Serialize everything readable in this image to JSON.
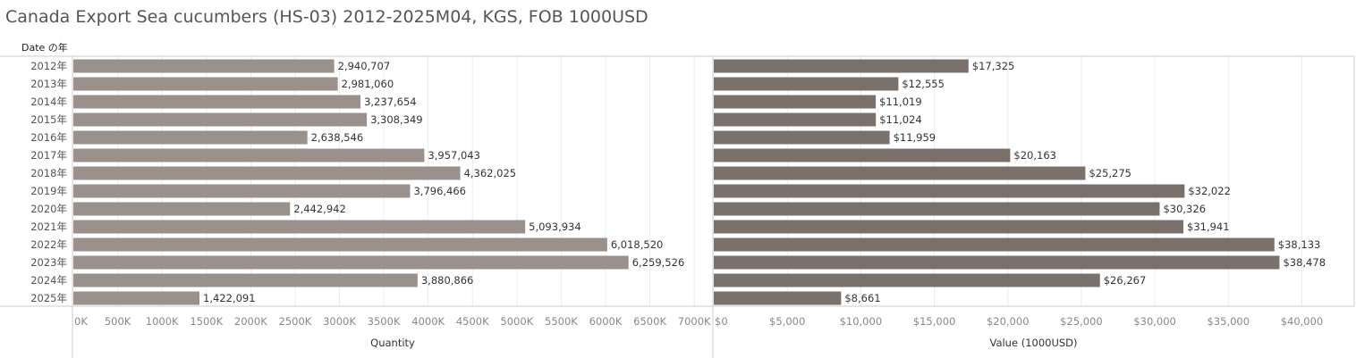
{
  "title": "Canada Export Sea cucumbers (HS-03) 2012-2025M04, KGS, FOB 1000USD",
  "row_header": "Date の年",
  "colors": {
    "quantity_bar": "#9b918c",
    "value_bar": "#7a706c",
    "grid": "#ececec",
    "axis": "#cccccc"
  },
  "chart_data": [
    {
      "type": "bar",
      "orientation": "horizontal",
      "categories": [
        "2012年",
        "2013年",
        "2014年",
        "2015年",
        "2016年",
        "2017年",
        "2018年",
        "2019年",
        "2020年",
        "2021年",
        "2022年",
        "2023年",
        "2024年",
        "2025年"
      ],
      "values": [
        2940707,
        2981060,
        3237654,
        3308349,
        2638546,
        3957043,
        4362025,
        3796466,
        2442942,
        5093934,
        6018520,
        6259526,
        3880866,
        1422091
      ],
      "value_labels": [
        "2,940,707",
        "2,981,060",
        "3,237,654",
        "3,308,349",
        "2,638,546",
        "3,957,043",
        "4,362,025",
        "3,796,466",
        "2,442,942",
        "5,093,934",
        "6,018,520",
        "6,259,526",
        "3,880,866",
        "1,422,091"
      ],
      "xlabel": "Quantity",
      "xlim": [
        0,
        7200000
      ],
      "ticks": [
        0,
        500000,
        1000000,
        1500000,
        2000000,
        2500000,
        3000000,
        3500000,
        4000000,
        4500000,
        5000000,
        5500000,
        6000000,
        6500000,
        7000000
      ],
      "tick_labels": [
        "0K",
        "500K",
        "1000K",
        "1500K",
        "2000K",
        "2500K",
        "3000K",
        "3500K",
        "4000K",
        "4500K",
        "5000K",
        "5500K",
        "6000K",
        "6500K",
        "7000K"
      ],
      "grid": true
    },
    {
      "type": "bar",
      "orientation": "horizontal",
      "categories": [
        "2012年",
        "2013年",
        "2014年",
        "2015年",
        "2016年",
        "2017年",
        "2018年",
        "2019年",
        "2020年",
        "2021年",
        "2022年",
        "2023年",
        "2024年",
        "2025年"
      ],
      "values": [
        17325,
        12555,
        11019,
        11024,
        11959,
        20163,
        25275,
        32022,
        30326,
        31941,
        38133,
        38478,
        26267,
        8661
      ],
      "value_labels": [
        "$17,325",
        "$12,555",
        "$11,019",
        "$11,024",
        "$11,959",
        "$20,163",
        "$25,275",
        "$32,022",
        "$30,326",
        "$31,941",
        "$38,133",
        "$38,478",
        "$26,267",
        "$8,661"
      ],
      "xlabel": "Value (1000USD)",
      "xlim": [
        0,
        43500
      ],
      "ticks": [
        0,
        5000,
        10000,
        15000,
        20000,
        25000,
        30000,
        35000,
        40000
      ],
      "tick_labels": [
        "$0",
        "$5,000",
        "$10,000",
        "$15,000",
        "$20,000",
        "$25,000",
        "$30,000",
        "$35,000",
        "$40,000"
      ],
      "grid": true
    }
  ]
}
